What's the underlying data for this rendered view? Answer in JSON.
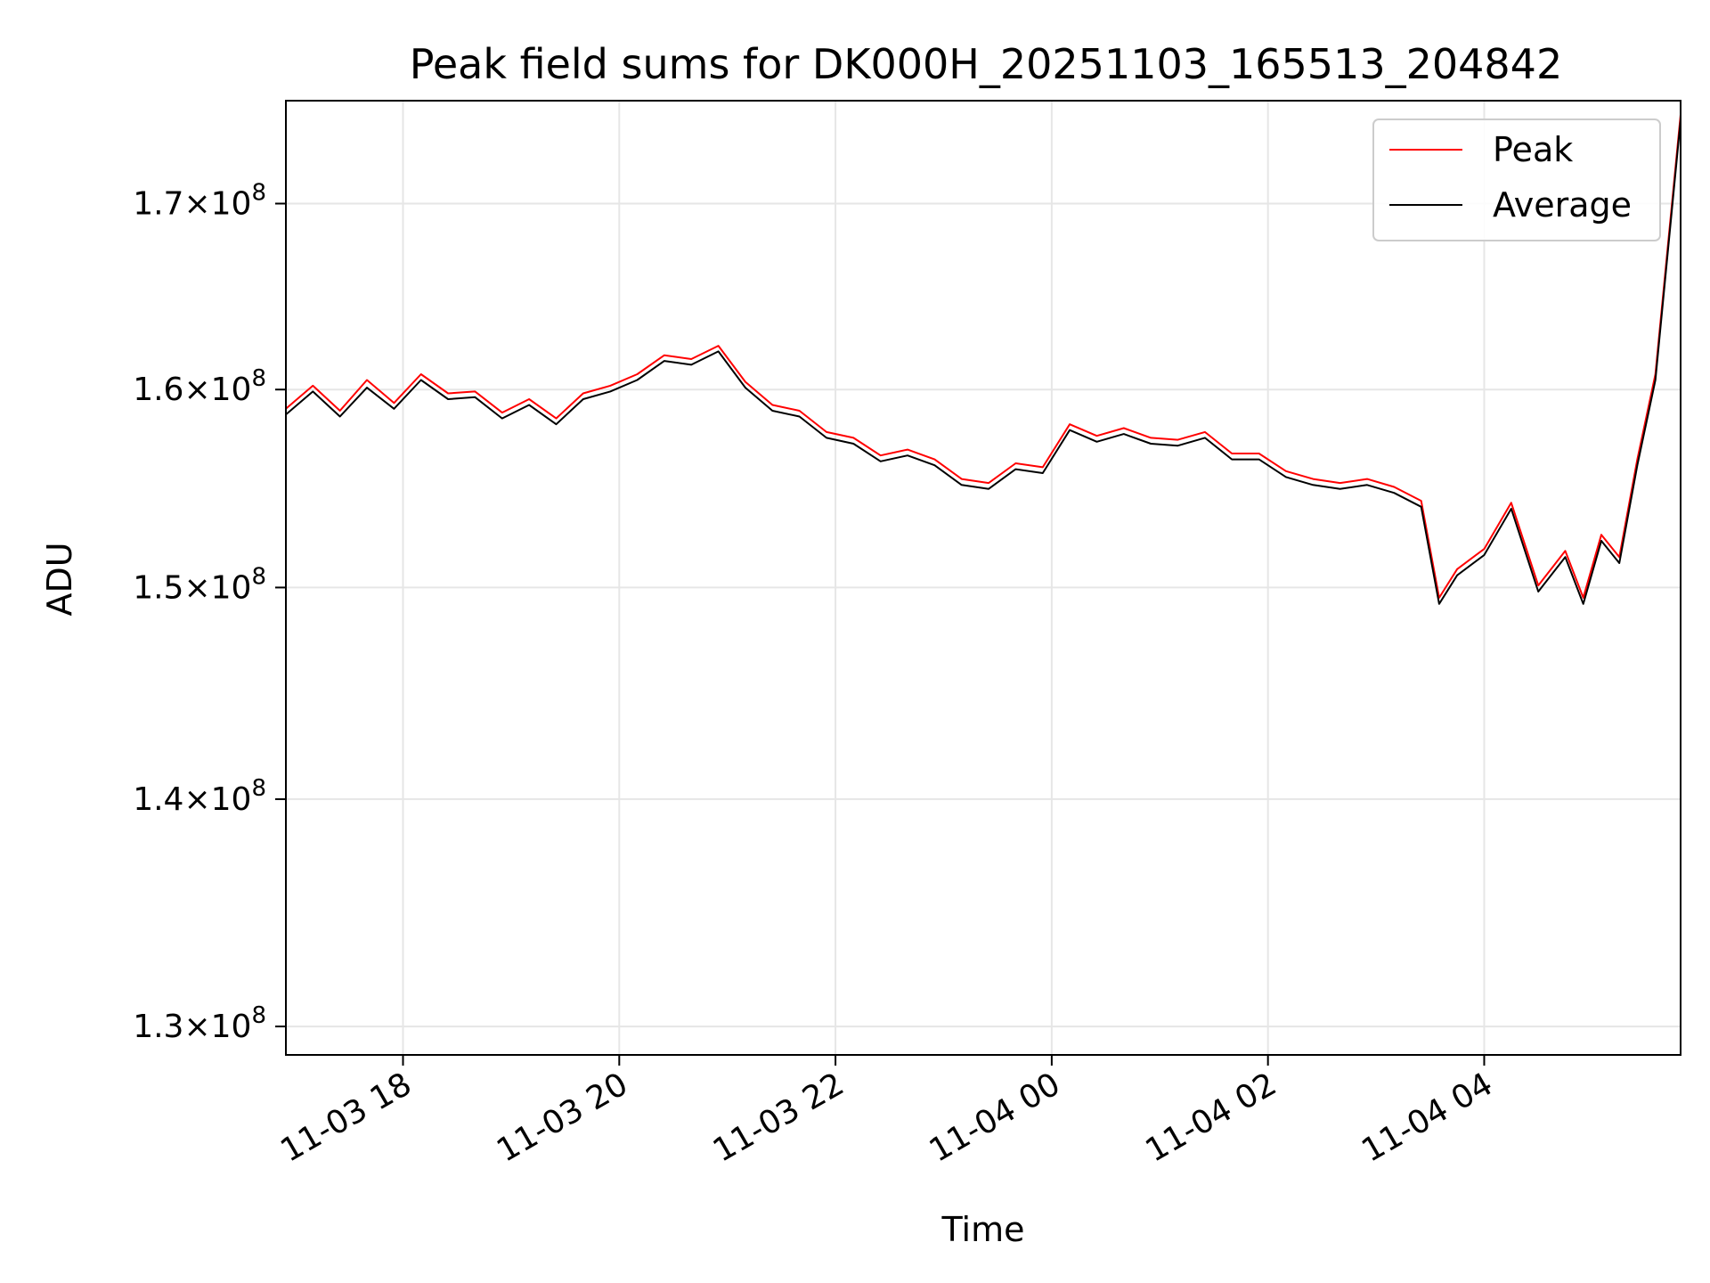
{
  "chart_data": {
    "type": "line",
    "title": "Peak field sums for DK000H_20251103_165513_204842",
    "xlabel": "Time",
    "ylabel": "ADU",
    "y_scale": "log",
    "xlim": [
      "2025-11-03 16:55",
      "2025-11-04 05:49"
    ],
    "ylim": [
      128800000,
      175800000
    ],
    "grid": true,
    "legend_position": "top-right",
    "x_ticks": [
      {
        "value": "2025-11-03 18:00",
        "label": "11-03 18"
      },
      {
        "value": "2025-11-03 20:00",
        "label": "11-03 20"
      },
      {
        "value": "2025-11-03 22:00",
        "label": "11-03 22"
      },
      {
        "value": "2025-11-04 00:00",
        "label": "11-04 00"
      },
      {
        "value": "2025-11-04 02:00",
        "label": "11-04 02"
      },
      {
        "value": "2025-11-04 04:00",
        "label": "11-04 04"
      }
    ],
    "y_ticks": [
      {
        "value": 130000000,
        "mantissa": "1.3",
        "exponent": "8"
      },
      {
        "value": 140000000,
        "mantissa": "1.4",
        "exponent": "8"
      },
      {
        "value": 150000000,
        "mantissa": "1.5",
        "exponent": "8"
      },
      {
        "value": 160000000,
        "mantissa": "1.6",
        "exponent": "8"
      },
      {
        "value": 170000000,
        "mantissa": "1.7",
        "exponent": "8"
      }
    ],
    "tick_times_label": "×10",
    "x": [
      "2025-11-03 16:55",
      "2025-11-03 17:10",
      "2025-11-03 17:25",
      "2025-11-03 17:40",
      "2025-11-03 17:55",
      "2025-11-03 18:10",
      "2025-11-03 18:25",
      "2025-11-03 18:40",
      "2025-11-03 18:55",
      "2025-11-03 19:10",
      "2025-11-03 19:25",
      "2025-11-03 19:40",
      "2025-11-03 19:55",
      "2025-11-03 20:10",
      "2025-11-03 20:25",
      "2025-11-03 20:40",
      "2025-11-03 20:55",
      "2025-11-03 21:10",
      "2025-11-03 21:25",
      "2025-11-03 21:40",
      "2025-11-03 21:55",
      "2025-11-03 22:10",
      "2025-11-03 22:25",
      "2025-11-03 22:40",
      "2025-11-03 22:55",
      "2025-11-03 23:10",
      "2025-11-03 23:25",
      "2025-11-03 23:40",
      "2025-11-03 23:55",
      "2025-11-04 00:10",
      "2025-11-04 00:25",
      "2025-11-04 00:40",
      "2025-11-04 00:55",
      "2025-11-04 01:10",
      "2025-11-04 01:25",
      "2025-11-04 01:40",
      "2025-11-04 01:55",
      "2025-11-04 02:10",
      "2025-11-04 02:25",
      "2025-11-04 02:40",
      "2025-11-04 02:55",
      "2025-11-04 03:10",
      "2025-11-04 03:25",
      "2025-11-04 03:35",
      "2025-11-04 03:45",
      "2025-11-04 04:00",
      "2025-11-04 04:15",
      "2025-11-04 04:30",
      "2025-11-04 04:45",
      "2025-11-04 04:55",
      "2025-11-04 05:05",
      "2025-11-04 05:15",
      "2025-11-04 05:25",
      "2025-11-04 05:35",
      "2025-11-04 05:49"
    ],
    "series": [
      {
        "name": "Peak",
        "color": "#ff0000",
        "values": [
          159000000,
          160200000,
          158900000,
          160500000,
          159300000,
          160800000,
          159800000,
          159900000,
          158800000,
          159500000,
          158500000,
          159800000,
          160200000,
          160800000,
          161800000,
          161600000,
          162300000,
          160400000,
          159200000,
          158900000,
          157800000,
          157500000,
          156600000,
          156900000,
          156400000,
          155400000,
          155200000,
          156200000,
          156000000,
          158200000,
          157600000,
          158000000,
          157500000,
          157400000,
          157800000,
          156700000,
          156700000,
          155800000,
          155400000,
          155200000,
          155400000,
          155000000,
          154300000,
          149500000,
          150900000,
          151900000,
          154200000,
          150100000,
          151800000,
          149500000,
          152600000,
          151500000,
          156400000,
          160800000,
          175000000
        ]
      },
      {
        "name": "Average",
        "color": "#000000",
        "values": [
          158700000,
          159900000,
          158600000,
          160100000,
          159000000,
          160500000,
          159500000,
          159600000,
          158500000,
          159200000,
          158200000,
          159500000,
          159900000,
          160500000,
          161500000,
          161300000,
          162000000,
          160100000,
          158900000,
          158600000,
          157500000,
          157200000,
          156300000,
          156600000,
          156100000,
          155100000,
          154900000,
          155900000,
          155700000,
          157900000,
          157300000,
          157700000,
          157200000,
          157100000,
          157500000,
          156400000,
          156400000,
          155500000,
          155100000,
          154900000,
          155100000,
          154700000,
          154000000,
          149200000,
          150600000,
          151600000,
          153900000,
          149800000,
          151500000,
          149200000,
          152300000,
          151200000,
          156100000,
          160500000,
          174700000
        ]
      }
    ]
  }
}
